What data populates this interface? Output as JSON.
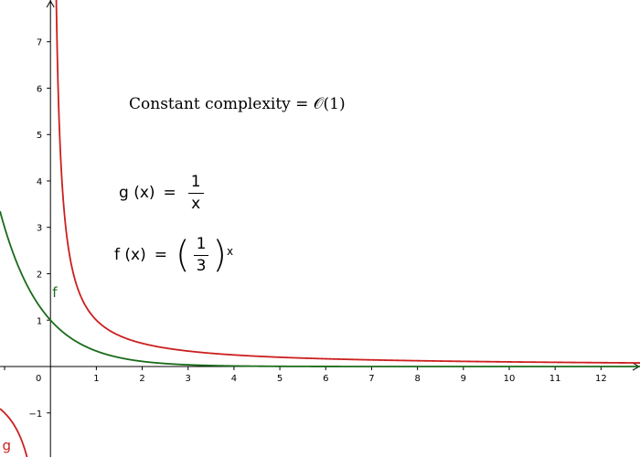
{
  "chart_data": {
    "type": "line",
    "title": "",
    "xlabel": "",
    "ylabel": "",
    "xlim": [
      -1.1,
      12.85
    ],
    "ylim": [
      -1.95,
      7.9
    ],
    "grid": false,
    "x_ticks": [
      0,
      1,
      2,
      3,
      4,
      5,
      6,
      7,
      8,
      9,
      10,
      11,
      12
    ],
    "y_ticks": [
      -1,
      1,
      2,
      3,
      4,
      5,
      6,
      7
    ],
    "x_tick_labels": [
      "0",
      "1",
      "2",
      "3",
      "4",
      "5",
      "6",
      "7",
      "8",
      "9",
      "10",
      "11",
      "12"
    ],
    "y_tick_labels": [
      "−1",
      "1",
      "2",
      "3",
      "4",
      "5",
      "6",
      "7"
    ],
    "series": [
      {
        "name": "f",
        "color": "#1a6b1a",
        "expression": "(1/3)^x",
        "x": [
          -1.07,
          -1,
          -0.5,
          0,
          0.5,
          1,
          1.5,
          2,
          2.5,
          3,
          4,
          5,
          6,
          8,
          10,
          12.85
        ],
        "y": [
          3.24,
          3,
          1.73,
          1,
          0.577,
          0.333,
          0.192,
          0.111,
          0.064,
          0.037,
          0.012,
          0.004,
          0.001,
          0.0002,
          0.0,
          0.0
        ]
      },
      {
        "name": "g",
        "color": "#cc1f1f",
        "expression": "1/x",
        "x": [
          0.127,
          0.15,
          0.2,
          0.3,
          0.5,
          0.75,
          1,
          1.5,
          2,
          3,
          4,
          5,
          6,
          8,
          10,
          12.85,
          -0.52,
          -0.6,
          -0.8,
          -1.1
        ],
        "y": [
          7.9,
          6.67,
          5,
          3.33,
          2,
          1.33,
          1,
          0.667,
          0.5,
          0.333,
          0.25,
          0.2,
          0.167,
          0.125,
          0.1,
          0.078,
          -1.92,
          -1.67,
          -1.25,
          -0.91
        ]
      }
    ],
    "curve_labels": {
      "f": "f",
      "g": "g"
    },
    "annotations": {
      "complexity_text": "Constant complexity = 𝒪(1)",
      "g_formula": {
        "lhs": "g (x)",
        "eq": "=",
        "numerator": "1",
        "denominator": "x"
      },
      "f_formula": {
        "lhs": "f (x)",
        "eq": "=",
        "open_paren": "(",
        "numerator": "1",
        "denominator": "3",
        "close_paren": ")",
        "exponent": "x"
      }
    }
  }
}
